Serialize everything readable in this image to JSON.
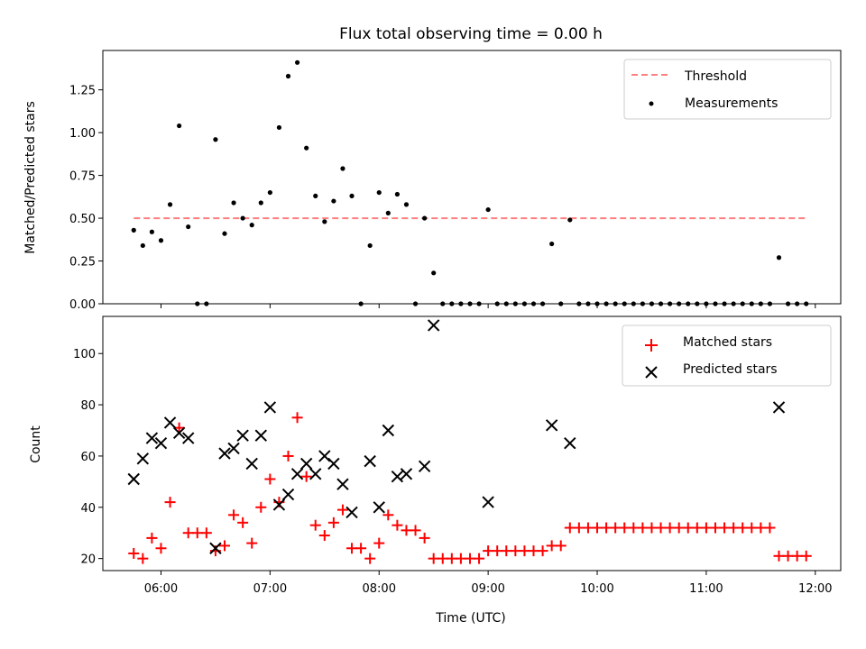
{
  "chart_data": [
    {
      "type": "scatter",
      "title": "Flux total observing time = 0.00 h",
      "xlabel": "",
      "ylabel": "Matched/Predicted stars",
      "xlim": [
        "05:28",
        "12:14"
      ],
      "ylim": [
        0,
        1.48
      ],
      "yticks": [
        "0.00",
        "0.25",
        "0.50",
        "0.75",
        "1.00",
        "1.25"
      ],
      "grid": false,
      "legend_position": "top-right",
      "threshold": {
        "name": "Threshold",
        "y": 0.5,
        "x_range": [
          "05:45",
          "11:55"
        ],
        "color": "#ff7f7f"
      },
      "series": [
        {
          "name": "Measurements",
          "color": "#000000",
          "points": [
            [
              "05:45",
              0.43
            ],
            [
              "05:50",
              0.34
            ],
            [
              "05:55",
              0.42
            ],
            [
              "06:00",
              0.37
            ],
            [
              "06:05",
              0.58
            ],
            [
              "06:10",
              1.04
            ],
            [
              "06:15",
              0.45
            ],
            [
              "06:20",
              0.0
            ],
            [
              "06:25",
              0.0
            ],
            [
              "06:30",
              0.96
            ],
            [
              "06:35",
              0.41
            ],
            [
              "06:40",
              0.59
            ],
            [
              "06:45",
              0.5
            ],
            [
              "06:50",
              0.46
            ],
            [
              "06:55",
              0.59
            ],
            [
              "07:00",
              0.65
            ],
            [
              "07:05",
              1.03
            ],
            [
              "07:10",
              1.33
            ],
            [
              "07:15",
              1.41
            ],
            [
              "07:20",
              0.91
            ],
            [
              "07:25",
              0.63
            ],
            [
              "07:30",
              0.48
            ],
            [
              "07:35",
              0.6
            ],
            [
              "07:40",
              0.79
            ],
            [
              "07:45",
              0.63
            ],
            [
              "07:50",
              0.0
            ],
            [
              "07:55",
              0.34
            ],
            [
              "08:00",
              0.65
            ],
            [
              "08:05",
              0.53
            ],
            [
              "08:10",
              0.64
            ],
            [
              "08:15",
              0.58
            ],
            [
              "08:20",
              0.0
            ],
            [
              "08:25",
              0.5
            ],
            [
              "08:30",
              0.18
            ],
            [
              "08:35",
              0.0
            ],
            [
              "08:40",
              0.0
            ],
            [
              "08:45",
              0.0
            ],
            [
              "08:50",
              0.0
            ],
            [
              "08:55",
              0.0
            ],
            [
              "09:00",
              0.55
            ],
            [
              "09:05",
              0.0
            ],
            [
              "09:10",
              0.0
            ],
            [
              "09:15",
              0.0
            ],
            [
              "09:20",
              0.0
            ],
            [
              "09:25",
              0.0
            ],
            [
              "09:30",
              0.0
            ],
            [
              "09:35",
              0.35
            ],
            [
              "09:40",
              0.0
            ],
            [
              "09:45",
              0.49
            ],
            [
              "09:50",
              0.0
            ],
            [
              "09:55",
              0.0
            ],
            [
              "10:00",
              0.0
            ],
            [
              "10:05",
              0.0
            ],
            [
              "10:10",
              0.0
            ],
            [
              "10:15",
              0.0
            ],
            [
              "10:20",
              0.0
            ],
            [
              "10:25",
              0.0
            ],
            [
              "10:30",
              0.0
            ],
            [
              "10:35",
              0.0
            ],
            [
              "10:40",
              0.0
            ],
            [
              "10:45",
              0.0
            ],
            [
              "10:50",
              0.0
            ],
            [
              "10:55",
              0.0
            ],
            [
              "11:00",
              0.0
            ],
            [
              "11:05",
              0.0
            ],
            [
              "11:10",
              0.0
            ],
            [
              "11:15",
              0.0
            ],
            [
              "11:20",
              0.0
            ],
            [
              "11:25",
              0.0
            ],
            [
              "11:30",
              0.0
            ],
            [
              "11:35",
              0.0
            ],
            [
              "11:40",
              0.27
            ],
            [
              "11:45",
              0.0
            ],
            [
              "11:50",
              0.0
            ],
            [
              "11:55",
              0.0
            ]
          ]
        }
      ]
    },
    {
      "type": "scatter",
      "title": "",
      "xlabel": "Time (UTC)",
      "ylabel": "Count",
      "xlim": [
        "05:28",
        "12:14"
      ],
      "ylim": [
        15.3,
        114.5
      ],
      "xticks": [
        "06:00",
        "07:00",
        "08:00",
        "09:00",
        "10:00",
        "11:00",
        "12:00"
      ],
      "yticks": [
        20,
        40,
        60,
        80,
        100
      ],
      "grid": false,
      "legend_position": "top-right",
      "series": [
        {
          "name": "Matched stars",
          "marker": "plus",
          "color": "#ff0000",
          "points": [
            [
              "05:45",
              22
            ],
            [
              "05:50",
              20
            ],
            [
              "05:55",
              28
            ],
            [
              "06:00",
              24
            ],
            [
              "06:05",
              42
            ],
            [
              "06:10",
              71
            ],
            [
              "06:15",
              30
            ],
            [
              "06:20",
              30
            ],
            [
              "06:25",
              30
            ],
            [
              "06:30",
              23
            ],
            [
              "06:35",
              25
            ],
            [
              "06:40",
              37
            ],
            [
              "06:45",
              34
            ],
            [
              "06:50",
              26
            ],
            [
              "06:55",
              40
            ],
            [
              "07:00",
              51
            ],
            [
              "07:05",
              42
            ],
            [
              "07:10",
              60
            ],
            [
              "07:15",
              75
            ],
            [
              "07:20",
              52
            ],
            [
              "07:25",
              33
            ],
            [
              "07:30",
              29
            ],
            [
              "07:35",
              34
            ],
            [
              "07:40",
              39
            ],
            [
              "07:45",
              24
            ],
            [
              "07:50",
              24
            ],
            [
              "07:55",
              20
            ],
            [
              "08:00",
              26
            ],
            [
              "08:05",
              37
            ],
            [
              "08:10",
              33
            ],
            [
              "08:15",
              31
            ],
            [
              "08:20",
              31
            ],
            [
              "08:25",
              28
            ],
            [
              "08:30",
              20
            ],
            [
              "08:35",
              20
            ],
            [
              "08:40",
              20
            ],
            [
              "08:45",
              20
            ],
            [
              "08:50",
              20
            ],
            [
              "08:55",
              20
            ],
            [
              "09:00",
              23
            ],
            [
              "09:05",
              23
            ],
            [
              "09:10",
              23
            ],
            [
              "09:15",
              23
            ],
            [
              "09:20",
              23
            ],
            [
              "09:25",
              23
            ],
            [
              "09:30",
              23
            ],
            [
              "09:35",
              25
            ],
            [
              "09:40",
              25
            ],
            [
              "09:45",
              32
            ],
            [
              "09:50",
              32
            ],
            [
              "09:55",
              32
            ],
            [
              "10:00",
              32
            ],
            [
              "10:05",
              32
            ],
            [
              "10:10",
              32
            ],
            [
              "10:15",
              32
            ],
            [
              "10:20",
              32
            ],
            [
              "10:25",
              32
            ],
            [
              "10:30",
              32
            ],
            [
              "10:35",
              32
            ],
            [
              "10:40",
              32
            ],
            [
              "10:45",
              32
            ],
            [
              "10:50",
              32
            ],
            [
              "10:55",
              32
            ],
            [
              "11:00",
              32
            ],
            [
              "11:05",
              32
            ],
            [
              "11:10",
              32
            ],
            [
              "11:15",
              32
            ],
            [
              "11:20",
              32
            ],
            [
              "11:25",
              32
            ],
            [
              "11:30",
              32
            ],
            [
              "11:35",
              32
            ],
            [
              "11:40",
              21
            ],
            [
              "11:45",
              21
            ],
            [
              "11:50",
              21
            ],
            [
              "11:55",
              21
            ]
          ]
        },
        {
          "name": "Predicted stars",
          "marker": "x",
          "color": "#000000",
          "points": [
            [
              "05:45",
              51
            ],
            [
              "05:50",
              59
            ],
            [
              "05:55",
              67
            ],
            [
              "06:00",
              65
            ],
            [
              "06:05",
              73
            ],
            [
              "06:10",
              69
            ],
            [
              "06:15",
              67
            ],
            [
              "06:30",
              24
            ],
            [
              "06:35",
              61
            ],
            [
              "06:40",
              63
            ],
            [
              "06:45",
              68
            ],
            [
              "06:50",
              57
            ],
            [
              "06:55",
              68
            ],
            [
              "07:00",
              79
            ],
            [
              "07:05",
              41
            ],
            [
              "07:10",
              45
            ],
            [
              "07:15",
              53
            ],
            [
              "07:20",
              57
            ],
            [
              "07:25",
              53
            ],
            [
              "07:30",
              60
            ],
            [
              "07:35",
              57
            ],
            [
              "07:40",
              49
            ],
            [
              "07:45",
              38
            ],
            [
              "07:55",
              58
            ],
            [
              "08:00",
              40
            ],
            [
              "08:05",
              70
            ],
            [
              "08:10",
              52
            ],
            [
              "08:15",
              53
            ],
            [
              "08:25",
              56
            ],
            [
              "08:30",
              111
            ],
            [
              "09:00",
              42
            ],
            [
              "09:35",
              72
            ],
            [
              "09:45",
              65
            ],
            [
              "11:40",
              79
            ]
          ]
        }
      ]
    }
  ]
}
